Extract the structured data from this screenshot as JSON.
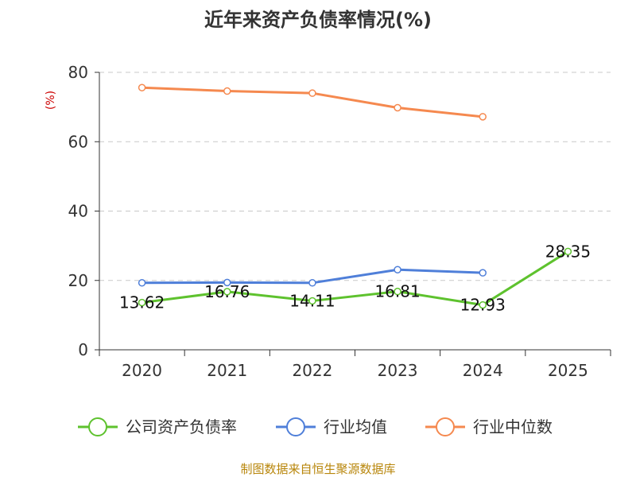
{
  "chart_data": {
    "type": "line",
    "title": "近年来资产负债率情况(%)",
    "unit_label": "(%)",
    "categories": [
      "2020",
      "2021",
      "2022",
      "2023",
      "2024",
      "2025"
    ],
    "ylim": [
      0,
      80
    ],
    "yticks": [
      0,
      20,
      40,
      60,
      80
    ],
    "grid": true,
    "legend_position": "bottom",
    "series": [
      {
        "name": "公司资产负债率",
        "color": "#5ec22e",
        "values": [
          13.62,
          16.76,
          14.11,
          16.81,
          12.93,
          28.35
        ],
        "labels": [
          "13.62",
          "16.76",
          "14.11",
          "16.81",
          "12.93",
          "28.35"
        ]
      },
      {
        "name": "行业均值",
        "color": "#4f7fd9",
        "values": [
          19.3,
          19.4,
          19.3,
          23.1,
          22.2,
          null
        ]
      },
      {
        "name": "行业中位数",
        "color": "#f5894f",
        "values": [
          75.6,
          74.6,
          74.0,
          69.8,
          67.2,
          null
        ]
      }
    ]
  },
  "footer": {
    "source": "制图数据来自恒生聚源数据库"
  }
}
